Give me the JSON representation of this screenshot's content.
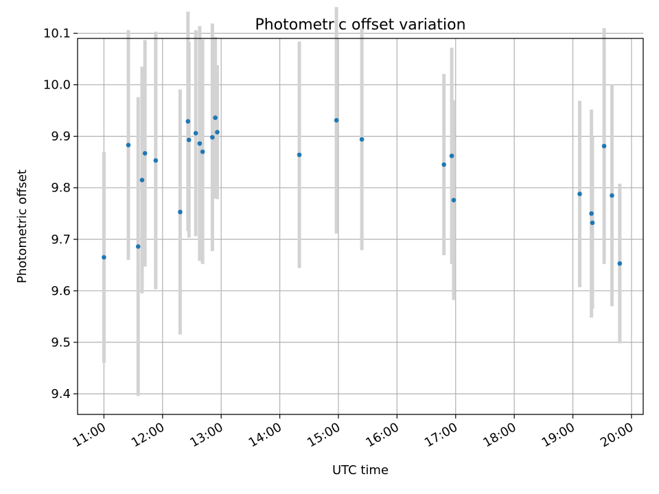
{
  "chart_data": {
    "type": "scatter",
    "title": "Photometric offset variation",
    "xlabel": "UTC time",
    "ylabel": "Photometric offset",
    "xlim": [
      "10:33",
      "20:12"
    ],
    "ylim": [
      9.36,
      10.09
    ],
    "xticks": [
      "11:00",
      "12:00",
      "13:00",
      "14:00",
      "15:00",
      "16:00",
      "17:00",
      "18:00",
      "19:00",
      "20:00"
    ],
    "yticks": [
      9.4,
      9.5,
      9.6,
      9.7,
      9.8,
      9.9,
      10.0,
      10.1
    ],
    "ytick_labels": [
      "9.4",
      "9.5",
      "9.6",
      "9.7",
      "9.8",
      "9.9",
      "10.0",
      "10.1"
    ],
    "grid": true,
    "colors": {
      "marker": "#1f77b4",
      "errorbar": "#d3d3d3",
      "grid": "#b0b0b0"
    },
    "points": [
      {
        "t": "11:00",
        "y": 9.665,
        "err": 0.205
      },
      {
        "t": "11:25",
        "y": 9.883,
        "err": 0.223
      },
      {
        "t": "11:35",
        "y": 9.686,
        "err": 0.29
      },
      {
        "t": "11:39",
        "y": 9.815,
        "err": 0.22
      },
      {
        "t": "11:42",
        "y": 9.867,
        "err": 0.22
      },
      {
        "t": "11:53",
        "y": 9.853,
        "err": 0.25
      },
      {
        "t": "12:18",
        "y": 9.753,
        "err": 0.238
      },
      {
        "t": "12:26",
        "y": 9.929,
        "err": 0.213
      },
      {
        "t": "12:27",
        "y": 9.893,
        "err": 0.19
      },
      {
        "t": "12:34",
        "y": 9.906,
        "err": 0.2
      },
      {
        "t": "12:38",
        "y": 9.886,
        "err": 0.228
      },
      {
        "t": "12:41",
        "y": 9.87,
        "err": 0.218
      },
      {
        "t": "12:51",
        "y": 9.898,
        "err": 0.221
      },
      {
        "t": "12:54",
        "y": 9.936,
        "err": 0.157
      },
      {
        "t": "12:56",
        "y": 9.908,
        "err": 0.13
      },
      {
        "t": "14:20",
        "y": 9.864,
        "err": 0.22
      },
      {
        "t": "14:58",
        "y": 9.931,
        "err": 0.22
      },
      {
        "t": "15:24",
        "y": 9.894,
        "err": 0.215
      },
      {
        "t": "16:48",
        "y": 9.845,
        "err": 0.176
      },
      {
        "t": "16:56",
        "y": 9.862,
        "err": 0.21
      },
      {
        "t": "16:58",
        "y": 9.776,
        "err": 0.194
      },
      {
        "t": "19:07",
        "y": 9.788,
        "err": 0.181
      },
      {
        "t": "19:19",
        "y": 9.75,
        "err": 0.202
      },
      {
        "t": "19:20",
        "y": 9.732,
        "err": 0.167
      },
      {
        "t": "19:32",
        "y": 9.881,
        "err": 0.229
      },
      {
        "t": "19:40",
        "y": 9.785,
        "err": 0.215
      },
      {
        "t": "19:48",
        "y": 9.653,
        "err": 0.155
      }
    ]
  }
}
